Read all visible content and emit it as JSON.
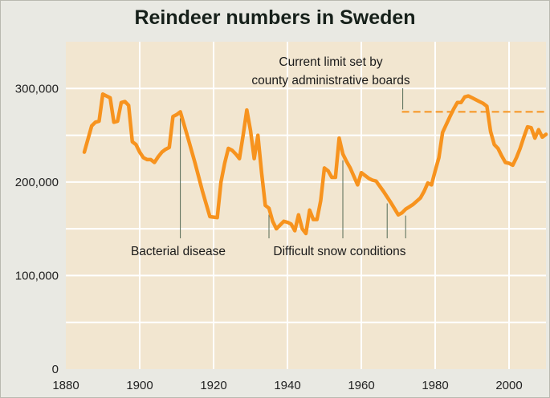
{
  "chart_data": {
    "type": "line",
    "title": "Reindeer numbers in Sweden",
    "xlabel": "",
    "ylabel": "",
    "xlim": [
      1880,
      2010
    ],
    "ylim": [
      0,
      350000
    ],
    "x_ticks": [
      1880,
      1900,
      1920,
      1940,
      1960,
      1980,
      2000
    ],
    "x_tick_labels": [
      "1880",
      "1900",
      "1920",
      "1940",
      "1960",
      "1980",
      "2000"
    ],
    "y_ticks": [
      0,
      100000,
      200000,
      300000
    ],
    "y_tick_labels": [
      "0",
      "100,000",
      "200,000",
      "300,000"
    ],
    "grid": true,
    "colors": {
      "series": "#f7931e",
      "plot_bg": "#f2e6d0",
      "grid": "#ffffff",
      "leader": "#556b55"
    },
    "series": [
      {
        "name": "Reindeer numbers",
        "x": [
          1885,
          1887,
          1888,
          1889,
          1890,
          1891,
          1892,
          1893,
          1894,
          1895,
          1896,
          1897,
          1898,
          1899,
          1900,
          1901,
          1902,
          1903,
          1904,
          1905,
          1906,
          1907,
          1908,
          1909,
          1910,
          1911,
          1913,
          1915,
          1917,
          1919,
          1921,
          1922,
          1923,
          1924,
          1925,
          1926,
          1927,
          1928,
          1929,
          1930,
          1931,
          1932,
          1933,
          1934,
          1935,
          1936,
          1937,
          1938,
          1939,
          1940,
          1941,
          1942,
          1943,
          1944,
          1945,
          1946,
          1947,
          1948,
          1949,
          1950,
          1951,
          1952,
          1953,
          1954,
          1955,
          1956,
          1957,
          1958,
          1959,
          1960,
          1961,
          1962,
          1963,
          1964,
          1966,
          1968,
          1970,
          1971,
          1972,
          1974,
          1976,
          1977,
          1978,
          1979,
          1980,
          1981,
          1982,
          1984,
          1985,
          1986,
          1987,
          1988,
          1989,
          1990,
          1991,
          1992,
          1993,
          1994,
          1995,
          1996,
          1997,
          1998,
          1999,
          2000,
          2001,
          2002,
          2003,
          2004,
          2005,
          2006,
          2007,
          2008,
          2009,
          2010
        ],
        "values": [
          232000,
          260000,
          264000,
          265000,
          294000,
          292000,
          290000,
          264000,
          265000,
          285000,
          286000,
          282000,
          243000,
          240000,
          232000,
          226000,
          224000,
          224000,
          221000,
          227000,
          232000,
          235000,
          237000,
          270000,
          272000,
          275000,
          248000,
          220000,
          190000,
          163000,
          162000,
          200000,
          220000,
          236000,
          234000,
          230000,
          225000,
          250000,
          277000,
          255000,
          225000,
          250000,
          210000,
          175000,
          172000,
          158000,
          150000,
          154000,
          158000,
          157000,
          155000,
          148000,
          165000,
          150000,
          145000,
          170000,
          160000,
          160000,
          180000,
          215000,
          212000,
          205000,
          205000,
          247000,
          230000,
          222000,
          215000,
          206000,
          197000,
          210000,
          207000,
          204000,
          202000,
          201000,
          190000,
          178000,
          165000,
          167000,
          171000,
          176000,
          183000,
          190000,
          199000,
          197000,
          212000,
          226000,
          253000,
          270000,
          278000,
          285000,
          285000,
          291000,
          292000,
          290000,
          288000,
          286000,
          284000,
          281000,
          254000,
          240000,
          236000,
          228000,
          221000,
          220000,
          218000,
          226000,
          236000,
          248000,
          259000,
          258000,
          247000,
          256000,
          248000,
          251000
        ]
      }
    ],
    "reference_line": {
      "label_line1": "Current limit set by",
      "label_line2": "county administrative boards",
      "value": 275000,
      "x_start": 1971,
      "x_end": 2010
    },
    "annotations": [
      {
        "text": "Bacterial disease",
        "years": [
          1911
        ]
      },
      {
        "text": "Difficult snow conditions",
        "years": [
          1935,
          1955,
          1967,
          1972
        ]
      }
    ]
  }
}
